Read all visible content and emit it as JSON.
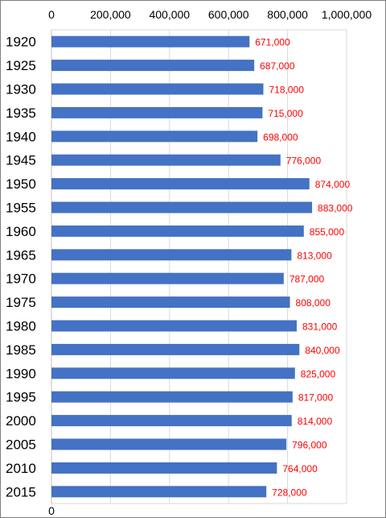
{
  "chart_data": {
    "type": "bar",
    "orientation": "horizontal",
    "title": "",
    "xlabel": "",
    "ylabel": "",
    "categories": [
      "1920",
      "1925",
      "1930",
      "1935",
      "1940",
      "1945",
      "1950",
      "1955",
      "1960",
      "1965",
      "1970",
      "1975",
      "1980",
      "1985",
      "1990",
      "1995",
      "2000",
      "2005",
      "2010",
      "2015"
    ],
    "values": [
      671000,
      687000,
      718000,
      715000,
      698000,
      776000,
      874000,
      883000,
      855000,
      813000,
      787000,
      808000,
      831000,
      840000,
      825000,
      817000,
      814000,
      796000,
      764000,
      728000
    ],
    "data_labels": [
      "671,000",
      "687,000",
      "718,000",
      "715,000",
      "698,000",
      "776,000",
      "874,000",
      "883,000",
      "855,000",
      "813,000",
      "787,000",
      "808,000",
      "831,000",
      "840,000",
      "825,000",
      "817,000",
      "814,000",
      "796,000",
      "764,000",
      "728,000"
    ],
    "xlim": [
      0,
      1000000
    ],
    "top_ticks": [
      "0",
      "200,000",
      "400,000",
      "600,000",
      "800,000",
      "1,000,000"
    ],
    "bottom_tick": "0",
    "grid": true,
    "legend": "none",
    "colors": {
      "bar": "#4472c4",
      "data_label": "#ff0000",
      "grid": "#d9d9d9",
      "axis": "#bfbfbf"
    }
  }
}
